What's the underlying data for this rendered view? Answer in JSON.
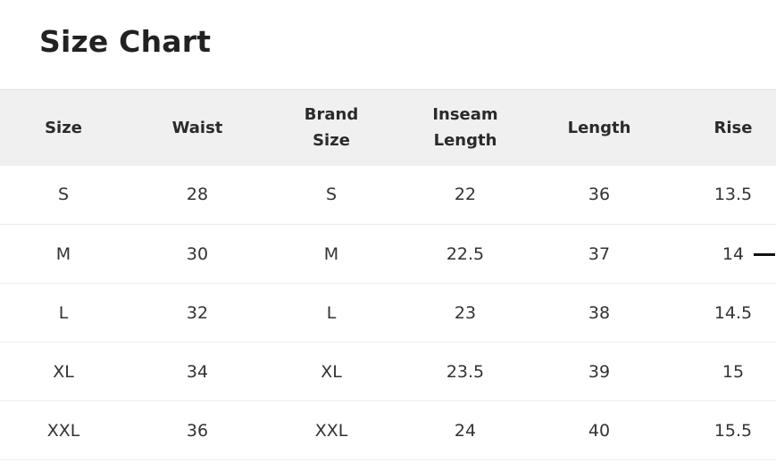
{
  "title": "Size Chart",
  "table": {
    "headers": [
      [
        "Size"
      ],
      [
        "Waist"
      ],
      [
        "Brand",
        "Size"
      ],
      [
        "Inseam",
        "Length"
      ],
      [
        "Length"
      ],
      [
        "Rise"
      ]
    ],
    "rows": [
      [
        "S",
        "28",
        "S",
        "22",
        "36",
        "13.5"
      ],
      [
        "M",
        "30",
        "M",
        "22.5",
        "37",
        "14"
      ],
      [
        "L",
        "32",
        "L",
        "23",
        "38",
        "14.5"
      ],
      [
        "XL",
        "34",
        "XL",
        "23.5",
        "39",
        "15"
      ],
      [
        "XXL",
        "36",
        "XXL",
        "24",
        "40",
        "15.5"
      ]
    ]
  },
  "icons": {
    "dash": "minus-icon"
  },
  "colors": {
    "header_bg": "#f0f0f0",
    "text": "#222222",
    "divider": "#ececec"
  }
}
